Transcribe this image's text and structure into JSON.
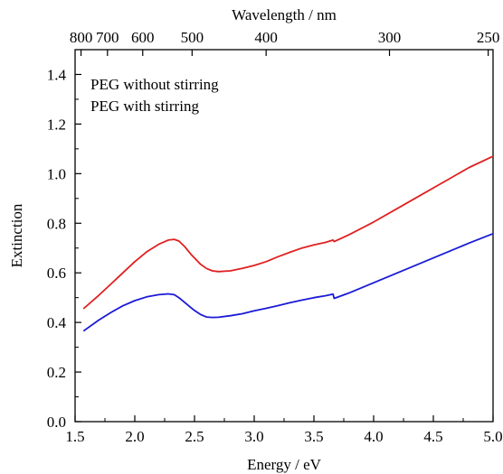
{
  "chart_data": {
    "type": "line",
    "xlabel": "Energy / eV",
    "ylabel": "Extinction",
    "top_axis_label": "Wavelength / nm",
    "xlim": [
      1.5,
      5.0
    ],
    "ylim": [
      0.0,
      1.5
    ],
    "x_ticks": [
      "1.5",
      "2.0",
      "2.5",
      "3.0",
      "3.5",
      "4.0",
      "4.5",
      "5.0"
    ],
    "y_ticks": [
      "0.0",
      "0.2",
      "0.4",
      "0.6",
      "0.8",
      "1.0",
      "1.2",
      "1.4"
    ],
    "top_ticks": [
      {
        "label": "800",
        "nm": 800
      },
      {
        "label": "700",
        "nm": 700
      },
      {
        "label": "600",
        "nm": 600
      },
      {
        "label": "500",
        "nm": 500
      },
      {
        "label": "400",
        "nm": 400
      },
      {
        "label": "300",
        "nm": 300
      },
      {
        "label": "250",
        "nm": 250
      }
    ],
    "legend_position": "top-left",
    "grid": false,
    "series": [
      {
        "name": "PEG without stirring",
        "color": "#e02020",
        "x": [
          1.57,
          1.7,
          1.8,
          1.9,
          2.0,
          2.1,
          2.2,
          2.28,
          2.33,
          2.37,
          2.42,
          2.47,
          2.5,
          2.55,
          2.6,
          2.65,
          2.7,
          2.8,
          2.9,
          3.0,
          3.1,
          3.2,
          3.3,
          3.4,
          3.5,
          3.6,
          3.66,
          3.67,
          3.8,
          4.0,
          4.2,
          4.4,
          4.6,
          4.8,
          5.0
        ],
        "y": [
          0.455,
          0.51,
          0.555,
          0.6,
          0.645,
          0.685,
          0.715,
          0.732,
          0.735,
          0.728,
          0.705,
          0.675,
          0.66,
          0.635,
          0.618,
          0.608,
          0.605,
          0.608,
          0.618,
          0.63,
          0.645,
          0.665,
          0.683,
          0.7,
          0.713,
          0.723,
          0.732,
          0.726,
          0.755,
          0.805,
          0.86,
          0.915,
          0.97,
          1.025,
          1.07
        ]
      },
      {
        "name": "PEG with stirring",
        "color": "#1a1ad6",
        "x": [
          1.57,
          1.7,
          1.8,
          1.9,
          2.0,
          2.1,
          2.2,
          2.28,
          2.33,
          2.37,
          2.42,
          2.47,
          2.5,
          2.55,
          2.6,
          2.65,
          2.7,
          2.8,
          2.9,
          3.0,
          3.1,
          3.2,
          3.3,
          3.4,
          3.5,
          3.6,
          3.66,
          3.67,
          3.8,
          4.0,
          4.2,
          4.4,
          4.6,
          4.8,
          5.0
        ],
        "y": [
          0.365,
          0.41,
          0.44,
          0.467,
          0.488,
          0.503,
          0.512,
          0.515,
          0.512,
          0.5,
          0.48,
          0.46,
          0.448,
          0.432,
          0.422,
          0.42,
          0.421,
          0.427,
          0.435,
          0.447,
          0.457,
          0.468,
          0.48,
          0.49,
          0.5,
          0.508,
          0.514,
          0.497,
          0.52,
          0.56,
          0.6,
          0.64,
          0.68,
          0.72,
          0.758
        ]
      }
    ]
  }
}
